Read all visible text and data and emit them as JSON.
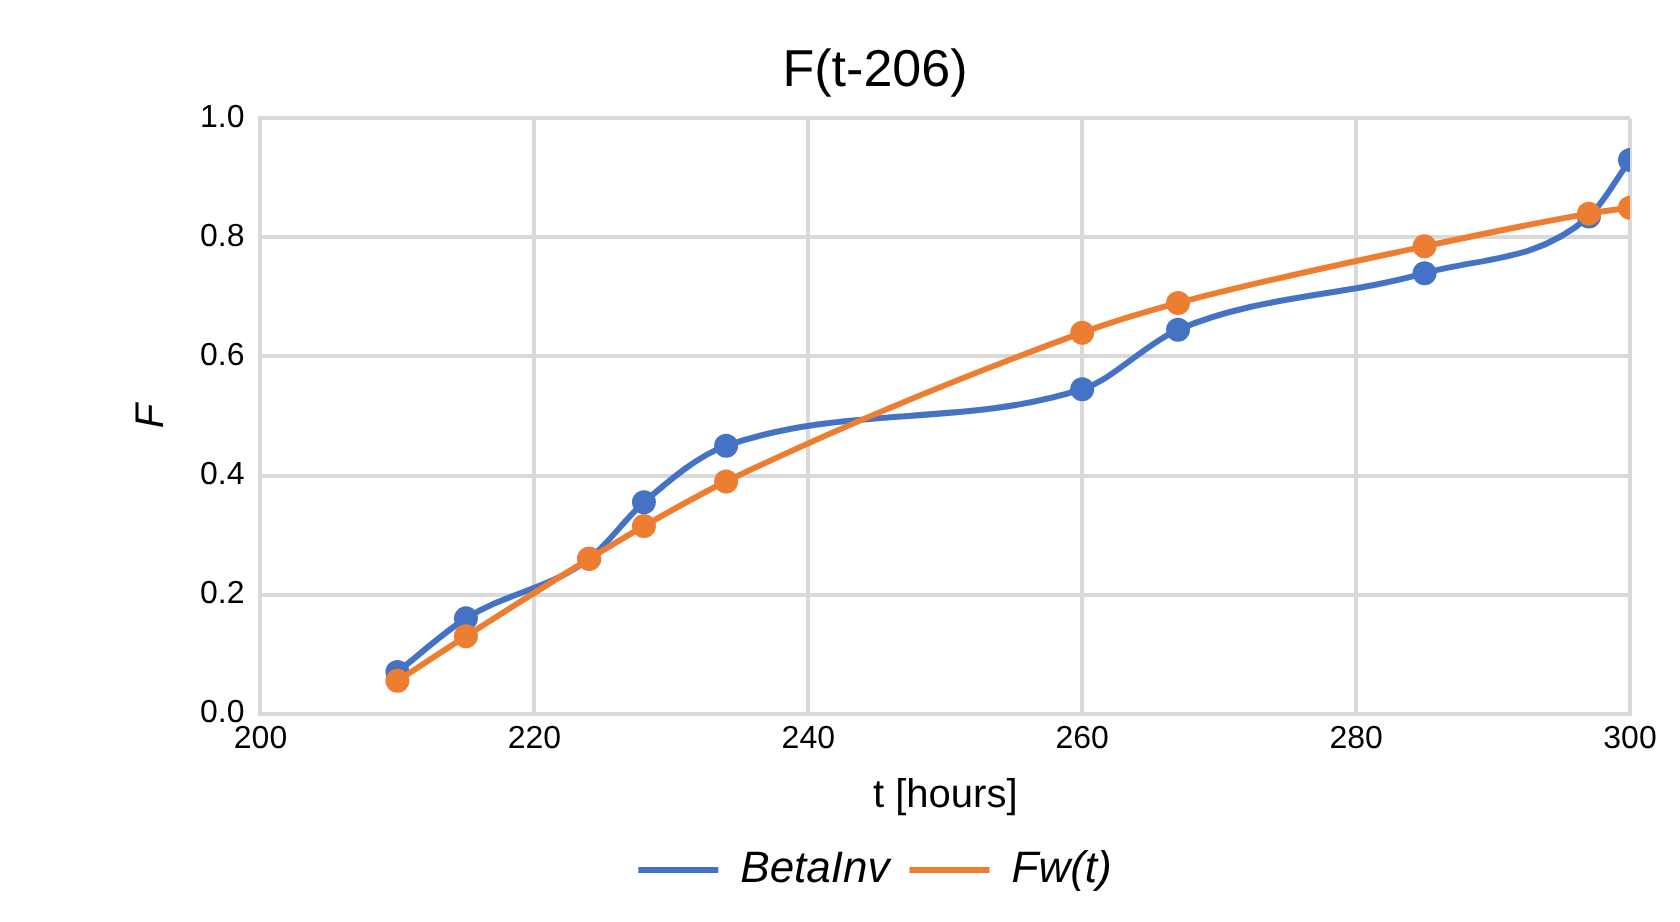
{
  "chart_data": {
    "type": "line",
    "title": "F(t-206)",
    "xlabel": "t [hours]",
    "ylabel": "F",
    "x": [
      210,
      215,
      224,
      228,
      234,
      260,
      267,
      285,
      297,
      300
    ],
    "series": [
      {
        "name": "BetaInv",
        "color": "#4472c4",
        "values": [
          0.07,
          0.16,
          0.26,
          0.355,
          0.45,
          0.545,
          0.645,
          0.74,
          0.835,
          0.93
        ]
      },
      {
        "name": "Fw(t)",
        "color": "#ed7d31",
        "values": [
          0.055,
          0.13,
          0.26,
          0.315,
          0.39,
          0.64,
          0.69,
          0.785,
          0.84,
          0.85
        ]
      }
    ],
    "xlim": [
      200,
      300
    ],
    "xticks": [
      200,
      220,
      240,
      260,
      280,
      300
    ],
    "ylim": [
      0,
      1
    ],
    "yticks": [
      {
        "value": 0,
        "label": "0.0"
      },
      {
        "value": 0.2,
        "label": "0.2"
      },
      {
        "value": 0.4,
        "label": "0.4"
      },
      {
        "value": 0.6,
        "label": "0.6"
      },
      {
        "value": 0.8,
        "label": "0.8"
      },
      {
        "value": 1,
        "label": "1.0"
      }
    ],
    "grid": true,
    "legend": "bottom",
    "marker": "circle",
    "line_style": "solid"
  }
}
